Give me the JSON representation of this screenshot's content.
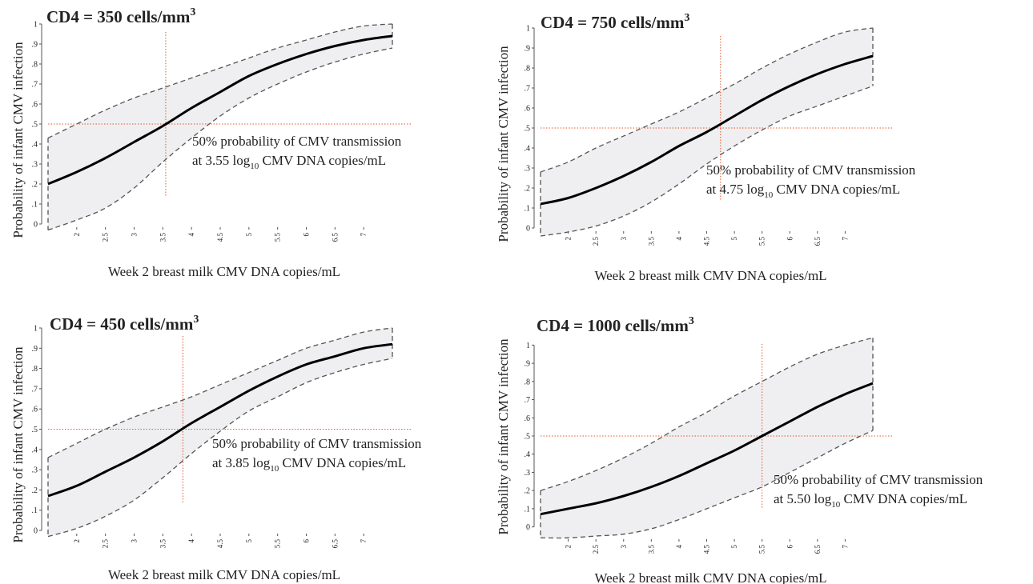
{
  "colors": {
    "ci_fill": "#efeff1",
    "ci_line": "#555555",
    "curve": "#000000",
    "ref_line": "#e8572a",
    "axis": "#555555"
  },
  "chart_data": [
    {
      "type": "line",
      "title": "CD4 = 350 cells/mm",
      "title_superscript": "3",
      "xlabel": "Week 2 breast milk CMV DNA copies/mL",
      "ylabel": "Probability of infant CMV infection",
      "xlim": [
        1.5,
        7.5
      ],
      "ylim": [
        0,
        1
      ],
      "x_ticks": [
        "2",
        "2.5",
        "3",
        "3.5",
        "4",
        "4.5",
        "5",
        "5.5",
        "6",
        "6.5",
        "7"
      ],
      "y_ticks": [
        "0",
        ".1",
        ".2",
        ".3",
        ".4",
        ".5",
        ".6",
        ".7",
        ".8",
        ".9",
        "1"
      ],
      "x": [
        1.5,
        2,
        2.5,
        3,
        3.5,
        4,
        4.5,
        5,
        5.5,
        6,
        6.5,
        7,
        7.5
      ],
      "series": [
        {
          "role": "estimate",
          "values": [
            0.2,
            0.26,
            0.33,
            0.41,
            0.49,
            0.58,
            0.66,
            0.74,
            0.8,
            0.85,
            0.89,
            0.92,
            0.94
          ]
        },
        {
          "role": "upper_ci",
          "values": [
            0.43,
            0.5,
            0.57,
            0.63,
            0.68,
            0.73,
            0.78,
            0.83,
            0.88,
            0.92,
            0.96,
            0.99,
            1.0
          ]
        },
        {
          "role": "lower_ci",
          "values": [
            -0.03,
            0.02,
            0.08,
            0.18,
            0.31,
            0.43,
            0.54,
            0.63,
            0.7,
            0.76,
            0.81,
            0.85,
            0.88
          ]
        }
      ],
      "reference": {
        "x": 3.55,
        "y": 0.5
      },
      "annotation": {
        "line1": "50% probability of CMV transmission",
        "line2_pre": "at 3.55 log",
        "line2_sub": "10",
        "line2_post": " CMV DNA copies/mL"
      }
    },
    {
      "type": "line",
      "title": "CD4 = 750 cells/mm",
      "title_superscript": "3",
      "xlabel": "Week 2 breast milk CMV DNA copies/mL",
      "ylabel": "Probability of infant CMV infection",
      "xlim": [
        1.5,
        7.5
      ],
      "ylim": [
        0,
        1
      ],
      "x_ticks": [
        "2",
        "2.5",
        "3",
        "3.5",
        "4",
        "4.5",
        "5",
        "5.5",
        "6",
        "6.5",
        "7"
      ],
      "y_ticks": [
        "0",
        ".1",
        ".2",
        ".3",
        ".4",
        ".5",
        ".6",
        ".7",
        ".8",
        ".9",
        "1"
      ],
      "x": [
        1.5,
        2,
        2.5,
        3,
        3.5,
        4,
        4.5,
        5,
        5.5,
        6,
        6.5,
        7,
        7.5
      ],
      "series": [
        {
          "role": "estimate",
          "values": [
            0.12,
            0.15,
            0.2,
            0.26,
            0.33,
            0.41,
            0.48,
            0.56,
            0.64,
            0.71,
            0.77,
            0.82,
            0.86
          ]
        },
        {
          "role": "upper_ci",
          "values": [
            0.28,
            0.33,
            0.4,
            0.46,
            0.52,
            0.58,
            0.65,
            0.72,
            0.8,
            0.87,
            0.93,
            0.98,
            1.0
          ]
        },
        {
          "role": "lower_ci",
          "values": [
            -0.04,
            -0.02,
            0.01,
            0.06,
            0.13,
            0.22,
            0.32,
            0.41,
            0.49,
            0.56,
            0.61,
            0.66,
            0.71
          ]
        }
      ],
      "reference": {
        "x": 4.75,
        "y": 0.5
      },
      "annotation": {
        "line1": "50% probability of CMV transmission",
        "line2_pre": "at 4.75 log",
        "line2_sub": "10",
        "line2_post": " CMV DNA copies/mL"
      }
    },
    {
      "type": "line",
      "title": "CD4 = 450 cells/mm",
      "title_superscript": "3",
      "xlabel": "Week 2 breast milk CMV DNA copies/mL",
      "ylabel": "Probability of infant CMV infection",
      "xlim": [
        1.5,
        7.5
      ],
      "ylim": [
        0,
        1
      ],
      "x_ticks": [
        "2",
        "2.5",
        "3",
        "3.5",
        "4",
        "4.5",
        "5",
        "5.5",
        "6",
        "6.5",
        "7"
      ],
      "y_ticks": [
        "0",
        ".1",
        ".2",
        ".3",
        ".4",
        ".5",
        ".6",
        ".7",
        ".8",
        ".9",
        "1"
      ],
      "x": [
        1.5,
        2,
        2.5,
        3,
        3.5,
        4,
        4.5,
        5,
        5.5,
        6,
        6.5,
        7,
        7.5
      ],
      "series": [
        {
          "role": "estimate",
          "values": [
            0.17,
            0.22,
            0.29,
            0.36,
            0.44,
            0.53,
            0.61,
            0.69,
            0.76,
            0.82,
            0.86,
            0.9,
            0.92
          ]
        },
        {
          "role": "upper_ci",
          "values": [
            0.36,
            0.43,
            0.5,
            0.56,
            0.61,
            0.66,
            0.72,
            0.78,
            0.84,
            0.9,
            0.94,
            0.98,
            1.0
          ]
        },
        {
          "role": "lower_ci",
          "values": [
            -0.03,
            0.01,
            0.07,
            0.15,
            0.26,
            0.38,
            0.49,
            0.59,
            0.66,
            0.73,
            0.78,
            0.82,
            0.85
          ]
        }
      ],
      "reference": {
        "x": 3.85,
        "y": 0.5
      },
      "annotation": {
        "line1": "50% probability of CMV transmission",
        "line2_pre": "at 3.85 log",
        "line2_sub": "10",
        "line2_post": " CMV DNA copies/mL"
      }
    },
    {
      "type": "line",
      "title": "CD4 = 1000 cells/mm",
      "title_superscript": "3",
      "xlabel": "Week 2 breast milk CMV DNA copies/mL",
      "ylabel": "Probability of infant CMV infection",
      "xlim": [
        1.5,
        7.5
      ],
      "ylim": [
        -0.05,
        1.05
      ],
      "x_ticks": [
        "2",
        "2.5",
        "3",
        "3.5",
        "4",
        "4.5",
        "5",
        "5.5",
        "6",
        "6.5",
        "7"
      ],
      "y_ticks": [
        "0",
        ".1",
        ".2",
        ".3",
        ".4",
        ".5",
        ".6",
        ".7",
        ".8",
        ".9",
        "1"
      ],
      "x": [
        1.5,
        2,
        2.5,
        3,
        3.5,
        4,
        4.5,
        5,
        5.5,
        6,
        6.5,
        7,
        7.5
      ],
      "series": [
        {
          "role": "estimate",
          "values": [
            0.07,
            0.1,
            0.13,
            0.17,
            0.22,
            0.28,
            0.35,
            0.42,
            0.5,
            0.58,
            0.66,
            0.73,
            0.79
          ]
        },
        {
          "role": "upper_ci",
          "values": [
            0.2,
            0.25,
            0.31,
            0.38,
            0.46,
            0.55,
            0.63,
            0.72,
            0.8,
            0.88,
            0.95,
            1.0,
            1.04
          ]
        },
        {
          "role": "lower_ci",
          "values": [
            -0.06,
            -0.06,
            -0.05,
            -0.04,
            -0.01,
            0.04,
            0.1,
            0.16,
            0.22,
            0.3,
            0.38,
            0.46,
            0.53
          ]
        }
      ],
      "reference": {
        "x": 5.5,
        "y": 0.5
      },
      "annotation": {
        "line1": "50% probability of CMV transmission",
        "line2_pre": "at 5.50 log",
        "line2_sub": "10",
        "line2_post": " CMV DNA copies/mL"
      }
    }
  ]
}
